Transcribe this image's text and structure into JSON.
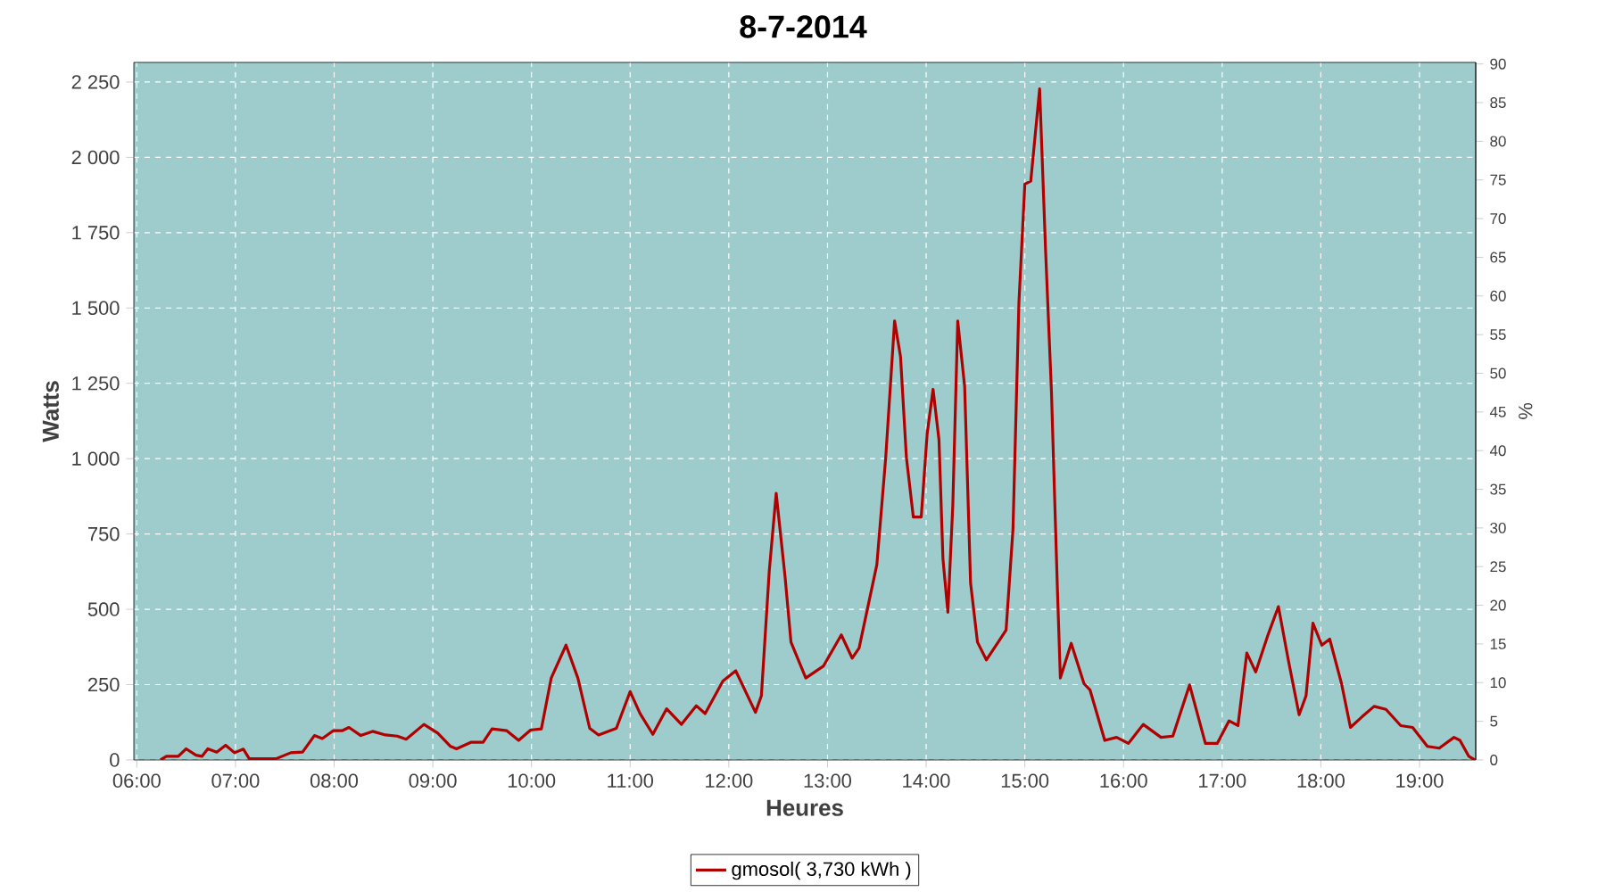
{
  "chart_data": {
    "type": "line",
    "title": "8-7-2014",
    "xlabel": "Heures",
    "ylabel": "Watts",
    "y2label": "%",
    "xlim": [
      5.97,
      19.57
    ],
    "ylim": [
      0,
      2315
    ],
    "y2lim": [
      0,
      90.2
    ],
    "xticks": [
      {
        "value": 6,
        "label": "06:00"
      },
      {
        "value": 7,
        "label": "07:00"
      },
      {
        "value": 8,
        "label": "08:00"
      },
      {
        "value": 9,
        "label": "09:00"
      },
      {
        "value": 10,
        "label": "10:00"
      },
      {
        "value": 11,
        "label": "11:00"
      },
      {
        "value": 12,
        "label": "12:00"
      },
      {
        "value": 13,
        "label": "13:00"
      },
      {
        "value": 14,
        "label": "14:00"
      },
      {
        "value": 15,
        "label": "15:00"
      },
      {
        "value": 16,
        "label": "16:00"
      },
      {
        "value": 17,
        "label": "17:00"
      },
      {
        "value": 18,
        "label": "18:00"
      },
      {
        "value": 19,
        "label": "19:00"
      }
    ],
    "yticks": [
      0,
      250,
      500,
      750,
      {
        "value": 1000,
        "label": "1 000"
      },
      {
        "value": 1250,
        "label": "1 250"
      },
      {
        "value": 1500,
        "label": "1 500"
      },
      {
        "value": 1750,
        "label": "1 750"
      },
      {
        "value": 2000,
        "label": "2 000"
      },
      {
        "value": 2250,
        "label": "2 250"
      }
    ],
    "y2ticks": [
      0,
      5,
      10,
      15,
      20,
      25,
      30,
      35,
      40,
      45,
      50,
      55,
      60,
      65,
      70,
      75,
      80,
      85,
      90
    ],
    "grid": true,
    "legend": "bottom",
    "marker": "none",
    "line_style": "solid",
    "series": [
      {
        "name": "gmosol( 3,730 kWh )",
        "color": "#b00000",
        "x": [
          6.24,
          6.3,
          6.42,
          6.5,
          6.6,
          6.66,
          6.72,
          6.81,
          6.9,
          6.99,
          7.08,
          7.14,
          7.41,
          7.56,
          7.68,
          7.8,
          7.88,
          7.99,
          8.08,
          8.15,
          8.27,
          8.39,
          8.52,
          8.64,
          8.73,
          8.91,
          9.05,
          9.18,
          9.24,
          9.39,
          9.51,
          9.6,
          9.75,
          9.87,
          9.99,
          10.1,
          10.2,
          10.35,
          10.47,
          10.59,
          10.68,
          10.86,
          11.0,
          11.1,
          11.23,
          11.37,
          11.52,
          11.67,
          11.76,
          11.94,
          12.07,
          12.27,
          12.33,
          12.41,
          12.48,
          12.57,
          12.63,
          12.78,
          12.96,
          13.14,
          13.25,
          13.32,
          13.5,
          13.59,
          13.68,
          13.74,
          13.8,
          13.87,
          13.95,
          14.01,
          14.07,
          14.13,
          14.17,
          14.22,
          14.27,
          14.32,
          14.39,
          14.45,
          14.52,
          14.61,
          14.73,
          14.81,
          14.88,
          14.94,
          15.0,
          15.06,
          15.15,
          15.21,
          15.27,
          15.33,
          15.36,
          15.47,
          15.6,
          15.66,
          15.81,
          15.93,
          16.05,
          16.2,
          16.38,
          16.5,
          16.67,
          16.83,
          16.95,
          17.07,
          17.16,
          17.25,
          17.34,
          17.46,
          17.57,
          17.67,
          17.78,
          17.85,
          17.92,
          18.01,
          18.09,
          18.21,
          18.3,
          18.42,
          18.54,
          18.66,
          18.81,
          18.93,
          19.08,
          19.2,
          19.35,
          19.41,
          19.5,
          19.56
        ],
        "values": [
          0,
          12,
          12,
          37,
          16,
          12,
          37,
          26,
          49,
          24,
          36,
          4,
          4,
          24,
          26,
          81,
          71,
          97,
          97,
          108,
          81,
          95,
          83,
          79,
          69,
          118,
          89,
          45,
          37,
          59,
          59,
          103,
          97,
          65,
          99,
          103,
          272,
          381,
          272,
          105,
          83,
          105,
          227,
          154,
          85,
          170,
          118,
          180,
          154,
          262,
          296,
          158,
          213,
          628,
          885,
          608,
          391,
          272,
          312,
          415,
          338,
          371,
          648,
          1003,
          1457,
          1339,
          1003,
          806,
          806,
          1082,
          1230,
          1062,
          668,
          490,
          845,
          1457,
          1240,
          588,
          391,
          332,
          391,
          431,
          766,
          1517,
          1911,
          1921,
          2227,
          1694,
          1220,
          569,
          272,
          387,
          253,
          233,
          65,
          75,
          55,
          118,
          75,
          79,
          249,
          55,
          55,
          130,
          114,
          355,
          292,
          411,
          509,
          332,
          150,
          213,
          454,
          381,
          401,
          253,
          108,
          144,
          178,
          168,
          114,
          108,
          45,
          39,
          75,
          65,
          12,
          0
        ]
      }
    ]
  }
}
